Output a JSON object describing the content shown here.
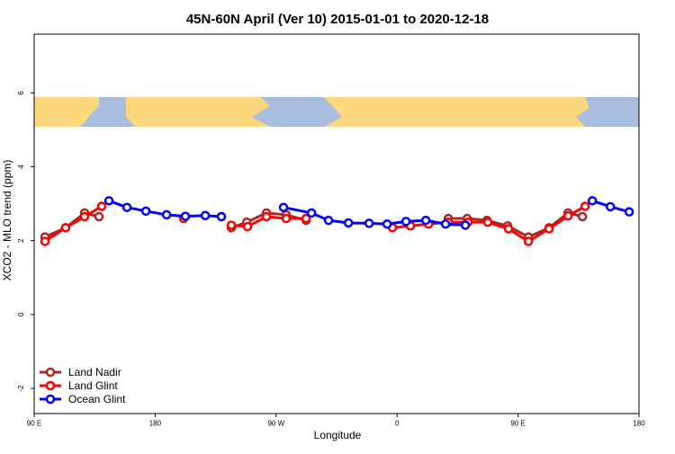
{
  "chart_data": {
    "type": "line",
    "title": "45N-60N April (Ver 10)   2015-01-01 to 2020-12-18",
    "x_label": "Longitude",
    "y_label": "XCO2 - MLO trend (ppm)",
    "xlim": [
      90,
      540
    ],
    "ylim": [
      -2.68,
      7.59
    ],
    "xticks": [
      {
        "value": 90,
        "label": "90 E"
      },
      180,
      {
        "value": 270,
        "label": "90 W"
      },
      {
        "value": 360,
        "label": "0"
      },
      {
        "value": 450,
        "label": "90 E"
      },
      {
        "value": 540,
        "label": "180"
      }
    ],
    "yticks": [
      -2,
      0,
      2,
      4,
      6
    ],
    "legend": "bottom-left",
    "series": [
      {
        "name": "Land Nadir",
        "color": "#a52a2a",
        "x": [
          98,
          113.4,
          127.5,
          138.2,
          null,
          236.7,
          248.1,
          262.8,
          277.5,
          292.3,
          null,
          398.1,
          412.2,
          426.9,
          442.3,
          457.7,
          473.1,
          487.2,
          497.9
        ],
        "values": [
          2.1,
          2.35,
          2.75,
          2.65,
          null,
          2.35,
          2.5,
          2.75,
          2.7,
          2.55,
          null,
          2.6,
          2.6,
          2.55,
          2.4,
          2.1,
          2.35,
          2.75,
          2.65
        ]
      },
      {
        "name": "Land Glint",
        "color": "#ff0000",
        "x": [
          98,
          113.4,
          127.5,
          140.2,
          null,
          201.2,
          null,
          236.7,
          248.7,
          262.8,
          277.5,
          292.3,
          null,
          356.6,
          370,
          383.4,
          398.1,
          412.8,
          427.5,
          442.9,
          457.7,
          473.1,
          487.2,
          499.9
        ],
        "values": [
          1.98,
          2.35,
          2.65,
          2.93,
          null,
          2.6,
          null,
          2.42,
          2.38,
          2.65,
          2.6,
          2.6,
          null,
          2.35,
          2.4,
          2.45,
          2.5,
          2.5,
          2.5,
          2.32,
          1.98,
          2.32,
          2.67,
          2.93
        ]
      },
      {
        "name": "Ocean Glint",
        "color": "#0000ff",
        "x": [
          145.6,
          159,
          173.1,
          188.5,
          202.5,
          217.3,
          229.3,
          null,
          275.5,
          296.3,
          309,
          323.8,
          339.2,
          352.6,
          366.6,
          381.4,
          396.1,
          410.8,
          null,
          505.3,
          518.7,
          532.7
        ],
        "values": [
          3.08,
          2.9,
          2.8,
          2.7,
          2.66,
          2.68,
          2.65,
          null,
          2.9,
          2.75,
          2.55,
          2.48,
          2.47,
          2.45,
          2.52,
          2.55,
          2.45,
          2.42,
          null,
          3.08,
          2.92,
          2.78
        ]
      }
    ]
  }
}
